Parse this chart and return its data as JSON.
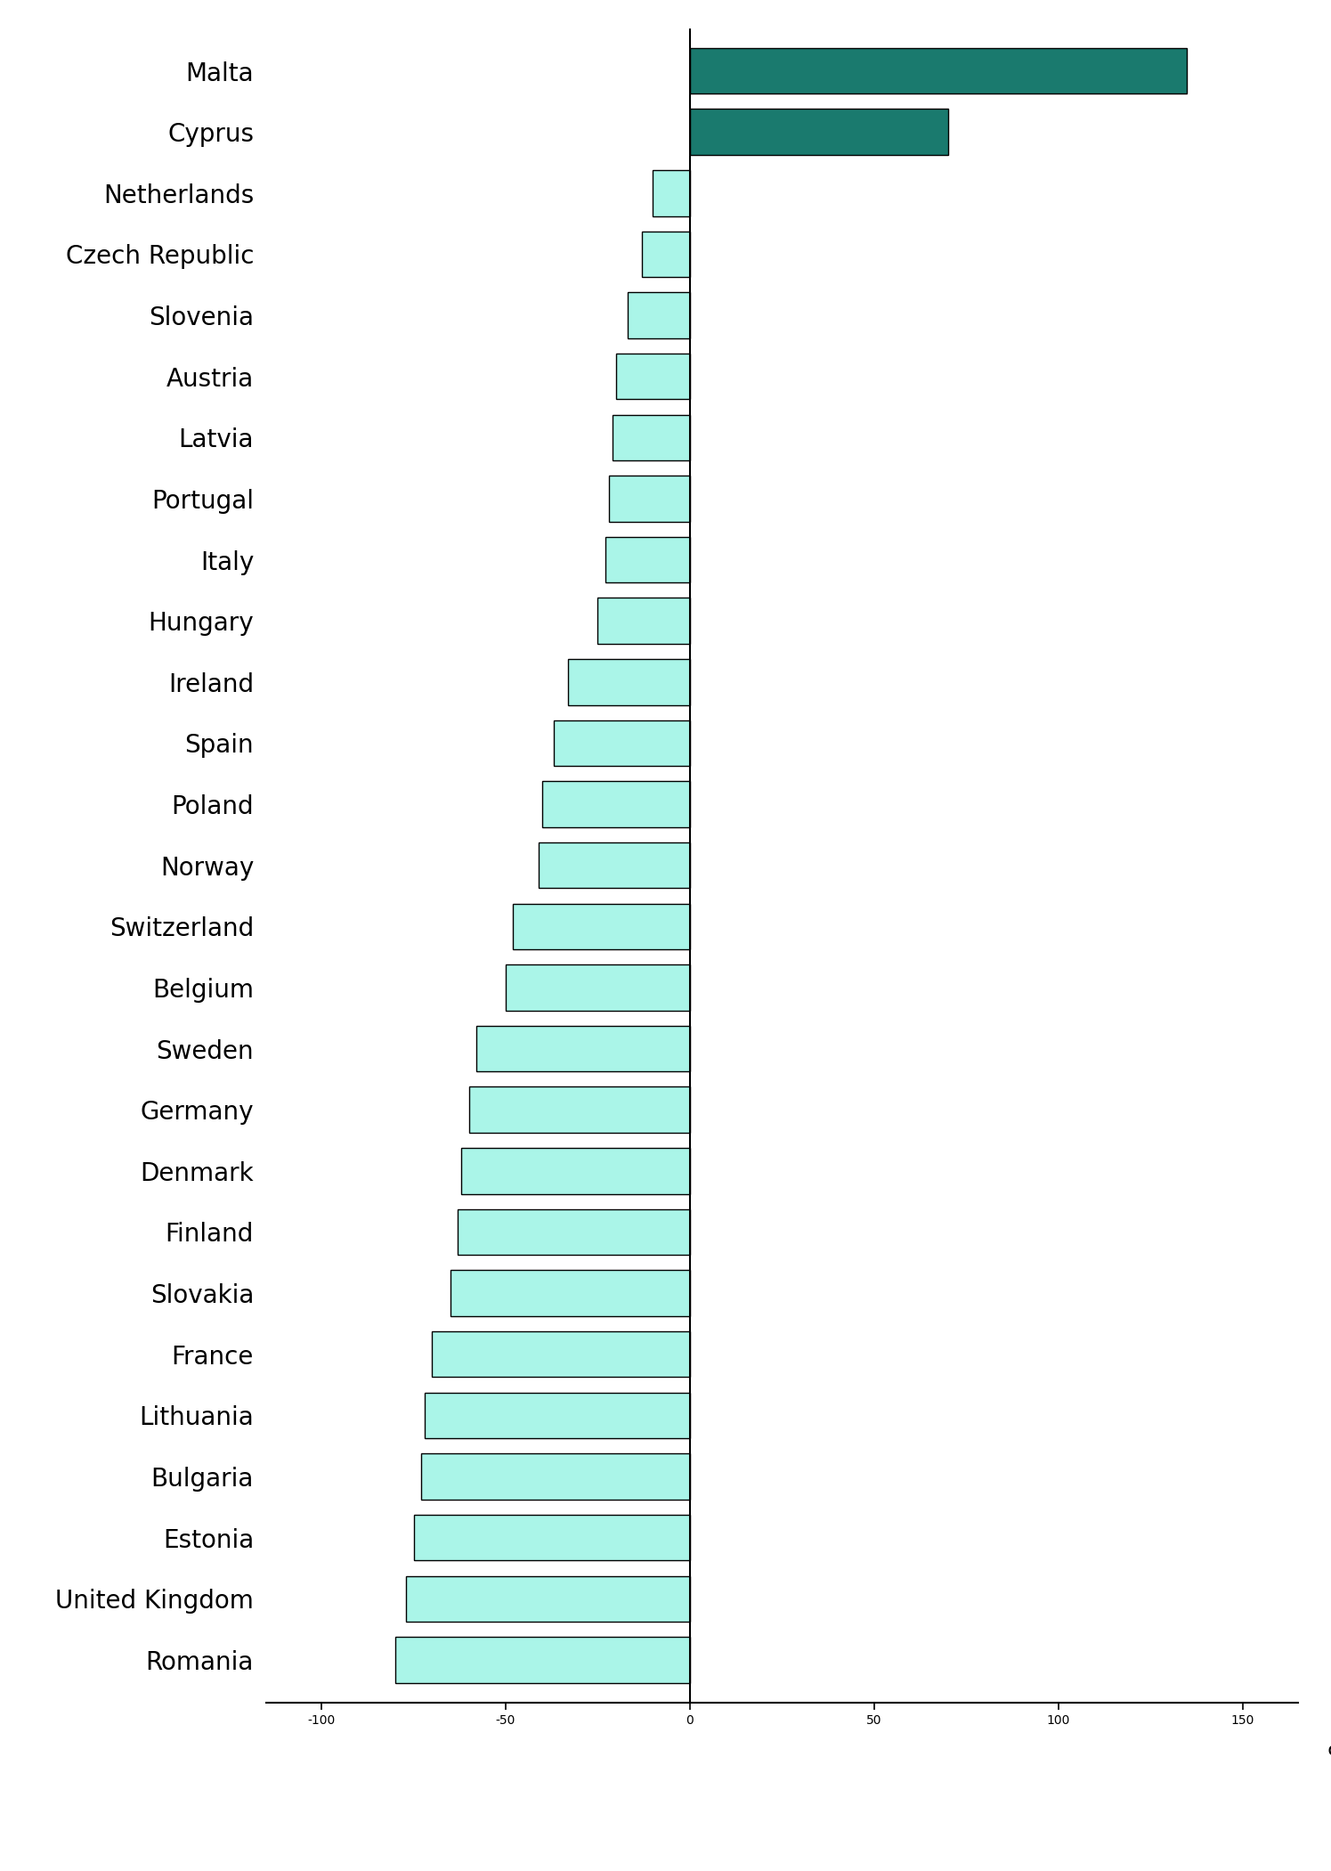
{
  "countries": [
    "Malta",
    "Cyprus",
    "Netherlands",
    "Czech Republic",
    "Slovenia",
    "Austria",
    "Latvia",
    "Portugal",
    "Italy",
    "Hungary",
    "Ireland",
    "Spain",
    "Poland",
    "Norway",
    "Switzerland",
    "Belgium",
    "Sweden",
    "Germany",
    "Denmark",
    "Finland",
    "Slovakia",
    "France",
    "Lithuania",
    "Bulgaria",
    "Estonia",
    "United Kingdom",
    "Romania"
  ],
  "values": [
    135,
    70,
    -10,
    -13,
    -17,
    -20,
    -21,
    -22,
    -23,
    -25,
    -33,
    -37,
    -40,
    -41,
    -48,
    -50,
    -58,
    -60,
    -62,
    -63,
    -65,
    -70,
    -72,
    -73,
    -75,
    -77,
    -80
  ],
  "positive_color": "#1a7a6e",
  "negative_color": "#aaf5e8",
  "bar_edgecolor": "#000000",
  "xlim": [
    -115,
    165
  ],
  "xticks": [
    -100,
    -50,
    0,
    50,
    100,
    150
  ],
  "xlabel": "%",
  "bar_height": 0.75,
  "fontsize_labels": 20,
  "fontsize_ticks": 20,
  "fontsize_xlabel": 20
}
